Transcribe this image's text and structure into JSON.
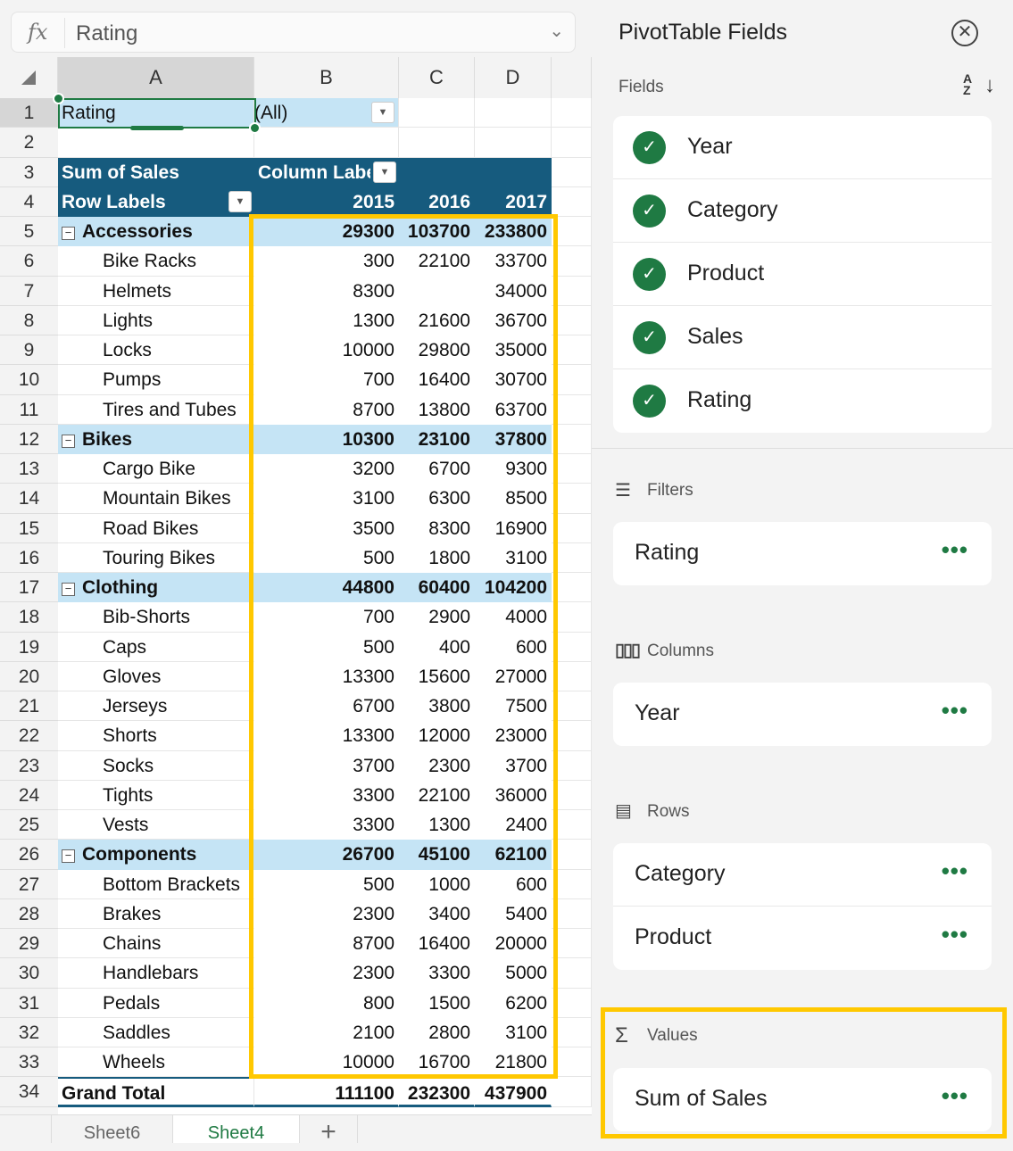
{
  "formula_bar": {
    "icon": "fx",
    "value": "Rating"
  },
  "columns": [
    "A",
    "B",
    "C",
    "D"
  ],
  "filter": {
    "label": "Rating",
    "value": "(All)"
  },
  "pivot": {
    "header_value": "Sum of Sales",
    "column_labels": "Column Labels",
    "row_labels": "Row Labels",
    "years": [
      "2015",
      "2016",
      "2017"
    ],
    "rows": [
      {
        "type": "category",
        "label": "Accessories",
        "values": [
          "29300",
          "103700",
          "233800"
        ]
      },
      {
        "type": "item",
        "label": "Bike Racks",
        "values": [
          "300",
          "22100",
          "33700"
        ]
      },
      {
        "type": "item",
        "label": "Helmets",
        "values": [
          "8300",
          "",
          "34000"
        ]
      },
      {
        "type": "item",
        "label": "Lights",
        "values": [
          "1300",
          "21600",
          "36700"
        ]
      },
      {
        "type": "item",
        "label": "Locks",
        "values": [
          "10000",
          "29800",
          "35000"
        ]
      },
      {
        "type": "item",
        "label": "Pumps",
        "values": [
          "700",
          "16400",
          "30700"
        ]
      },
      {
        "type": "item",
        "label": "Tires and Tubes",
        "values": [
          "8700",
          "13800",
          "63700"
        ]
      },
      {
        "type": "category",
        "label": "Bikes",
        "values": [
          "10300",
          "23100",
          "37800"
        ]
      },
      {
        "type": "item",
        "label": "Cargo Bike",
        "values": [
          "3200",
          "6700",
          "9300"
        ]
      },
      {
        "type": "item",
        "label": "Mountain Bikes",
        "values": [
          "3100",
          "6300",
          "8500"
        ]
      },
      {
        "type": "item",
        "label": "Road Bikes",
        "values": [
          "3500",
          "8300",
          "16900"
        ]
      },
      {
        "type": "item",
        "label": "Touring Bikes",
        "values": [
          "500",
          "1800",
          "3100"
        ]
      },
      {
        "type": "category",
        "label": "Clothing",
        "values": [
          "44800",
          "60400",
          "104200"
        ]
      },
      {
        "type": "item",
        "label": "Bib-Shorts",
        "values": [
          "700",
          "2900",
          "4000"
        ]
      },
      {
        "type": "item",
        "label": "Caps",
        "values": [
          "500",
          "400",
          "600"
        ]
      },
      {
        "type": "item",
        "label": "Gloves",
        "values": [
          "13300",
          "15600",
          "27000"
        ]
      },
      {
        "type": "item",
        "label": "Jerseys",
        "values": [
          "6700",
          "3800",
          "7500"
        ]
      },
      {
        "type": "item",
        "label": "Shorts",
        "values": [
          "13300",
          "12000",
          "23000"
        ]
      },
      {
        "type": "item",
        "label": "Socks",
        "values": [
          "3700",
          "2300",
          "3700"
        ]
      },
      {
        "type": "item",
        "label": "Tights",
        "values": [
          "3300",
          "22100",
          "36000"
        ]
      },
      {
        "type": "item",
        "label": "Vests",
        "values": [
          "3300",
          "1300",
          "2400"
        ]
      },
      {
        "type": "category",
        "label": "Components",
        "values": [
          "26700",
          "45100",
          "62100"
        ]
      },
      {
        "type": "item",
        "label": "Bottom Brackets",
        "values": [
          "500",
          "1000",
          "600"
        ]
      },
      {
        "type": "item",
        "label": "Brakes",
        "values": [
          "2300",
          "3400",
          "5400"
        ]
      },
      {
        "type": "item",
        "label": "Chains",
        "values": [
          "8700",
          "16400",
          "20000"
        ]
      },
      {
        "type": "item",
        "label": "Handlebars",
        "values": [
          "2300",
          "3300",
          "5000"
        ]
      },
      {
        "type": "item",
        "label": "Pedals",
        "values": [
          "800",
          "1500",
          "6200"
        ]
      },
      {
        "type": "item",
        "label": "Saddles",
        "values": [
          "2100",
          "2800",
          "3100"
        ]
      },
      {
        "type": "item",
        "label": "Wheels",
        "values": [
          "10000",
          "16700",
          "21800"
        ]
      }
    ],
    "grand_total": {
      "label": "Grand Total",
      "values": [
        "111100",
        "232300",
        "437900"
      ]
    }
  },
  "sheet_tabs": [
    {
      "label": "Sheet6",
      "active": false
    },
    {
      "label": "Sheet4",
      "active": true
    }
  ],
  "add_sheet": "+",
  "panel": {
    "title": "PivotTable Fields",
    "fields_label": "Fields",
    "fields": [
      "Year",
      "Category",
      "Product",
      "Sales",
      "Rating"
    ],
    "filters_label": "Filters",
    "filters": [
      "Rating"
    ],
    "columns_label": "Columns",
    "columns": [
      "Year"
    ],
    "rows_label": "Rows",
    "rows": [
      "Category",
      "Product"
    ],
    "values_label": "Values",
    "values": [
      "Sum of Sales"
    ]
  },
  "colors": {
    "header": "#165b7e",
    "category": "#c5e4f5",
    "accent": "#1f7a43",
    "highlight": "#ffc800"
  }
}
